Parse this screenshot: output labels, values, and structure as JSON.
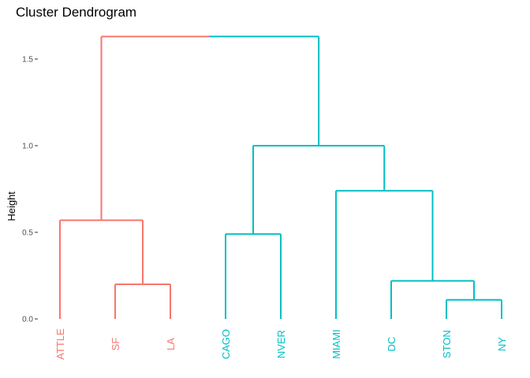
{
  "chart_data": {
    "type": "dendrogram",
    "title": "Cluster Dendrogram",
    "xlabel": "",
    "ylabel": "Height",
    "ylim": [
      0,
      1.7
    ],
    "yticks": [
      0.0,
      0.5,
      1.0,
      1.5
    ],
    "ytick_labels": [
      "0.0",
      "0.5",
      "1.0",
      "1.5"
    ],
    "grid": false,
    "colors": {
      "cluster1": "#F8766D",
      "cluster2": "#00BFC4",
      "axis_text": "#4d4d4d"
    },
    "leaves": [
      {
        "label": "SEATTLE",
        "visible_label": "ATTLE",
        "cluster": 1
      },
      {
        "label": "SF",
        "visible_label": "SF",
        "cluster": 1
      },
      {
        "label": "LA",
        "visible_label": "LA",
        "cluster": 1
      },
      {
        "label": "CHICAGO",
        "visible_label": "CAGO",
        "cluster": 2
      },
      {
        "label": "DENVER",
        "visible_label": "NVER",
        "cluster": 2
      },
      {
        "label": "MIAMI",
        "visible_label": "MIAMI",
        "cluster": 2
      },
      {
        "label": "DC",
        "visible_label": "DC",
        "cluster": 2
      },
      {
        "label": "BOSTON",
        "visible_label": "STON",
        "cluster": 2
      },
      {
        "label": "NY",
        "visible_label": "NY",
        "cluster": 2
      }
    ],
    "merges": [
      {
        "a": "BOSTON",
        "b": "NY",
        "height": 0.11,
        "cluster": 2
      },
      {
        "a": "SF",
        "b": "LA",
        "height": 0.2,
        "cluster": 1
      },
      {
        "a": "DC",
        "b": "m1",
        "height": 0.22,
        "cluster": 2
      },
      {
        "a": "CHICAGO",
        "b": "DENVER",
        "height": 0.49,
        "cluster": 2
      },
      {
        "a": "SEATTLE",
        "b": "m2",
        "height": 0.57,
        "cluster": 1
      },
      {
        "a": "MIAMI",
        "b": "m3",
        "height": 0.74,
        "cluster": 2
      },
      {
        "a": "m4",
        "b": "m6",
        "height": 1.0,
        "cluster": 2
      },
      {
        "a": "m5",
        "b": "m7",
        "height": 1.63,
        "cluster": "split"
      }
    ]
  }
}
